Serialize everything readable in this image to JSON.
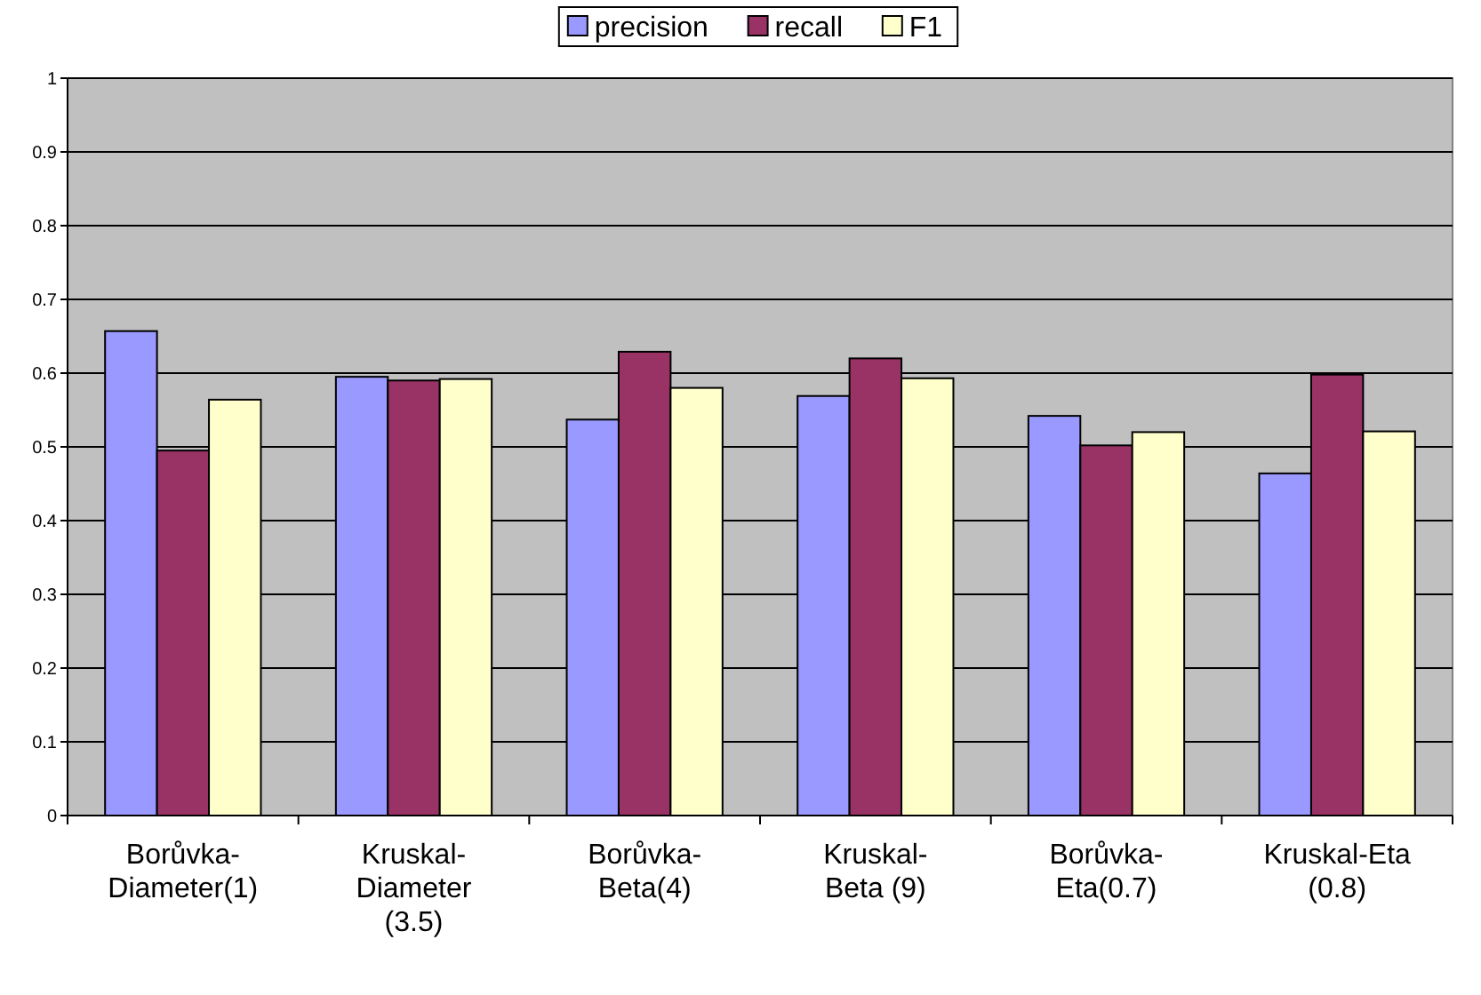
{
  "chart_data": {
    "type": "bar",
    "categories": [
      "Borůvka-Diameter(1)",
      "Kruskal-Diameter (3.5)",
      "Borůvka-Beta(4)",
      "Kruskal-Beta (9)",
      "Borůvka-Eta(0.7)",
      "Kruskal-Eta (0.8)"
    ],
    "series": [
      {
        "name": "precision",
        "color": "#9999ff",
        "values": [
          0.657,
          0.595,
          0.537,
          0.569,
          0.542,
          0.464
        ]
      },
      {
        "name": "recall",
        "color": "#993366",
        "values": [
          0.495,
          0.59,
          0.629,
          0.62,
          0.502,
          0.598
        ]
      },
      {
        "name": "F1",
        "color": "#ffffcc",
        "values": [
          0.564,
          0.592,
          0.58,
          0.593,
          0.52,
          0.521
        ]
      }
    ],
    "ylim": [
      0,
      1
    ],
    "yticks": [
      0,
      0.1,
      0.2,
      0.3,
      0.4,
      0.5,
      0.6,
      0.7,
      0.8,
      0.9,
      1
    ],
    "grid": "y",
    "legend": "top"
  }
}
